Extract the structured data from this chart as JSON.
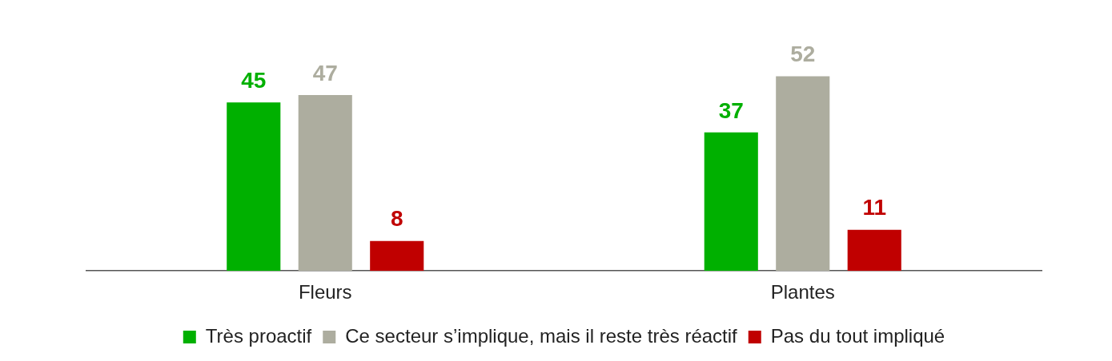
{
  "chart_data": {
    "type": "bar",
    "categories": [
      "Fleurs",
      "Plantes"
    ],
    "series": [
      {
        "name": "Très proactif",
        "color": "#00b000",
        "values": [
          45,
          37
        ]
      },
      {
        "name": "Ce secteur s’implique, mais il reste très réactif",
        "color": "#adad9f",
        "values": [
          47,
          52
        ]
      },
      {
        "name": "Pas du tout impliqué",
        "color": "#c00000",
        "values": [
          8,
          11
        ]
      }
    ],
    "data_labels": true,
    "legend": "bottom",
    "grid": false
  }
}
